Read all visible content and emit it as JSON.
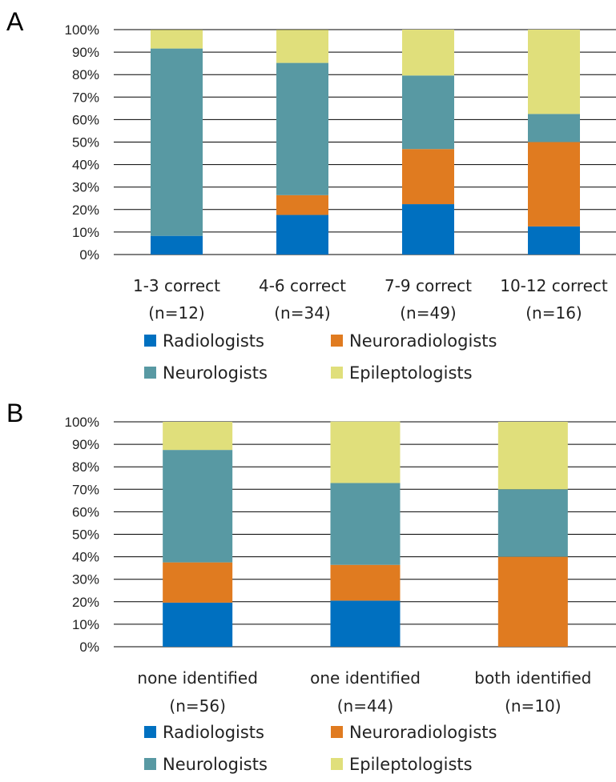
{
  "colors": {
    "Radiologists": "#0070c0",
    "Neuroradiologists": "#e07b20",
    "Neurologists": "#5899a3",
    "Epileptologists": "#e0df7b"
  },
  "chart_data": [
    {
      "panel": "A",
      "type": "bar",
      "stacked": true,
      "percent": true,
      "ylim": [
        0,
        100
      ],
      "yticks": [
        "0%",
        "10%",
        "20%",
        "30%",
        "40%",
        "50%",
        "60%",
        "70%",
        "80%",
        "90%",
        "100%"
      ],
      "categories": [
        [
          "1-3 correct",
          "(n=12)"
        ],
        [
          "4-6 correct",
          "(n=34)"
        ],
        [
          "7-9 correct",
          "(n=49)"
        ],
        [
          "10-12 correct",
          "(n=16)"
        ]
      ],
      "series": [
        {
          "name": "Radiologists",
          "values": [
            8.3,
            17.6,
            22.4,
            12.5
          ]
        },
        {
          "name": "Neuroradiologists",
          "values": [
            0,
            8.8,
            24.5,
            37.5
          ]
        },
        {
          "name": "Neurologists",
          "values": [
            83.3,
            58.8,
            32.7,
            12.5
          ]
        },
        {
          "name": "Epileptologists",
          "values": [
            8.3,
            14.7,
            20.4,
            37.5
          ]
        }
      ],
      "grid": true,
      "legend": "bottom"
    },
    {
      "panel": "B",
      "type": "bar",
      "stacked": true,
      "percent": true,
      "ylim": [
        0,
        100
      ],
      "yticks": [
        "0%",
        "10%",
        "20%",
        "30%",
        "40%",
        "50%",
        "60%",
        "70%",
        "80%",
        "90%",
        "100%"
      ],
      "categories": [
        [
          "none identified",
          "(n=56)"
        ],
        [
          "one identified",
          "(n=44)"
        ],
        [
          "both identified",
          "(n=10)"
        ]
      ],
      "series": [
        {
          "name": "Radiologists",
          "values": [
            19.6,
            20.5,
            0
          ]
        },
        {
          "name": "Neuroradiologists",
          "values": [
            17.9,
            15.9,
            40
          ]
        },
        {
          "name": "Neurologists",
          "values": [
            50.0,
            36.4,
            30
          ]
        },
        {
          "name": "Epileptologists",
          "values": [
            12.5,
            27.3,
            30
          ]
        }
      ],
      "grid": true,
      "legend": "bottom"
    }
  ]
}
